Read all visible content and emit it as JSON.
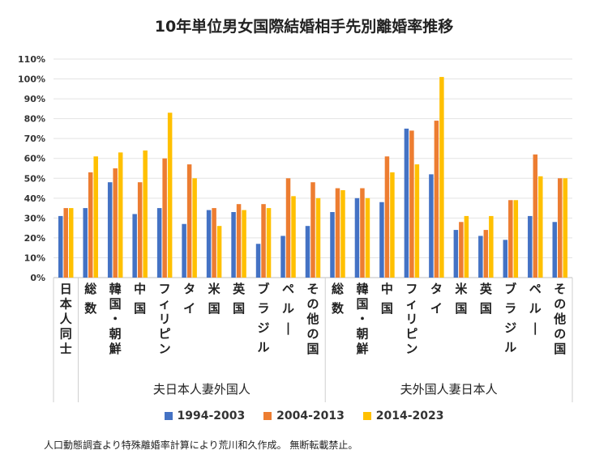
{
  "chart_data": {
    "type": "bar",
    "title": "10年単位男女国際結婚相手先別離婚率推移",
    "xlabel": "",
    "ylabel": "",
    "ylim": [
      0,
      1.1
    ],
    "yticks": [
      "0%",
      "10%",
      "20%",
      "30%",
      "40%",
      "50%",
      "60%",
      "70%",
      "80%",
      "90%",
      "100%",
      "110%"
    ],
    "grid": true,
    "legend_position": "bottom",
    "groups": [
      {
        "label": "夫日本人妻外国人",
        "categories": [
          "総数",
          "韓国・朝鮮",
          "中国",
          "フィリピン",
          "タイ",
          "米国",
          "英国",
          "ブラジル",
          "ペルー",
          "その他の国"
        ]
      },
      {
        "label": "夫外国人妻日本人",
        "categories": [
          "総数",
          "韓国・朝鮮",
          "中国",
          "フィリピン",
          "タイ",
          "米国",
          "英国",
          "ブラジル",
          "ペルー",
          "その他の国"
        ]
      }
    ],
    "categories": [
      "日本人同士",
      "総数",
      "韓国・朝鮮",
      "中国",
      "フィリピン",
      "タイ",
      "米国",
      "英国",
      "ブラジル",
      "ペルー",
      "その他の国",
      "総数",
      "韓国・朝鮮",
      "中国",
      "フィリピン",
      "タイ",
      "米国",
      "英国",
      "ブラジル",
      "ペルー",
      "その他の国"
    ],
    "series": [
      {
        "name": "1994-2003",
        "color": "#4472C4",
        "values": [
          0.31,
          0.35,
          0.48,
          0.32,
          0.35,
          0.27,
          0.34,
          0.33,
          0.17,
          0.21,
          0.26,
          0.33,
          0.4,
          0.38,
          0.75,
          0.52,
          0.24,
          0.21,
          0.19,
          0.31,
          0.28
        ]
      },
      {
        "name": "2004-2013",
        "color": "#ED7D31",
        "values": [
          0.35,
          0.53,
          0.55,
          0.48,
          0.6,
          0.57,
          0.35,
          0.37,
          0.37,
          0.5,
          0.48,
          0.45,
          0.45,
          0.61,
          0.74,
          0.79,
          0.28,
          0.24,
          0.39,
          0.62,
          0.5
        ]
      },
      {
        "name": "2014-2023",
        "color": "#FFC000",
        "values": [
          0.35,
          0.61,
          0.63,
          0.64,
          0.83,
          0.5,
          0.26,
          0.34,
          0.35,
          0.41,
          0.4,
          0.44,
          0.4,
          0.53,
          0.57,
          1.01,
          0.31,
          0.31,
          0.39,
          0.51,
          0.5
        ]
      }
    ]
  },
  "footnote": "人口動態調査より特殊離婚率計算により荒川和久作成。 無断転載禁止。"
}
